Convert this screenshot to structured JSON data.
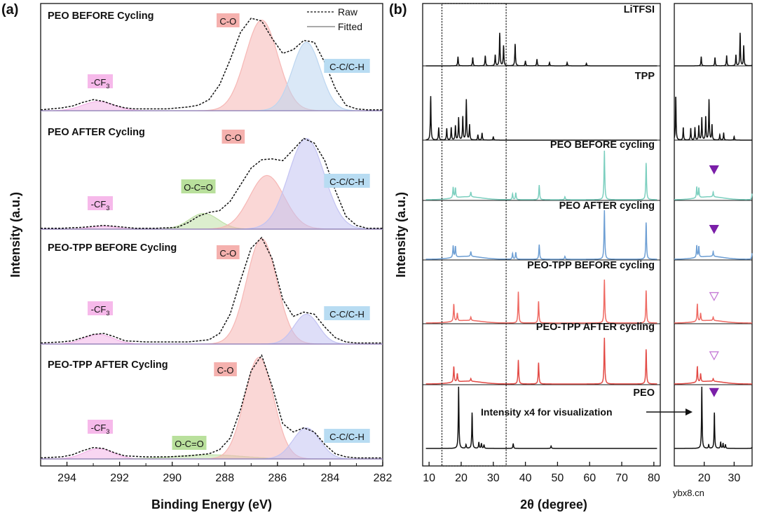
{
  "chart_data": [
    {
      "type": "line",
      "panel": "(a)",
      "xlabel": "Binding Energy (eV)",
      "ylabel": "Intensity (a.u.)",
      "xlim": [
        295,
        282
      ],
      "xticks": [
        294,
        292,
        290,
        288,
        286,
        284,
        282
      ],
      "legend": {
        "position": "top-right",
        "entries": [
          "Raw",
          "Fitted"
        ]
      },
      "subplots": [
        {
          "title": "PEO BEFORE Cycling",
          "scale": 1.0,
          "raw": {
            "x": [
              295,
              294.6,
              294.2,
              293.8,
              293.4,
              293,
              292.6,
              292.2,
              291.8,
              291.4,
              291,
              290.6,
              290.2,
              289.8,
              289.4,
              289,
              288.6,
              288.2,
              287.8,
              287.4,
              287,
              286.6,
              286.2,
              285.8,
              285.4,
              285,
              284.6,
              284.2,
              283.8,
              283.4,
              283,
              282.6,
              282.2,
              282
            ],
            "y": [
              0.01,
              0.02,
              0.03,
              0.05,
              0.09,
              0.12,
              0.1,
              0.06,
              0.03,
              0.02,
              0.02,
              0.02,
              0.02,
              0.03,
              0.04,
              0.06,
              0.12,
              0.28,
              0.55,
              0.85,
              1.0,
              0.97,
              0.78,
              0.62,
              0.66,
              0.76,
              0.74,
              0.52,
              0.24,
              0.06,
              0.02,
              0.01,
              0.01,
              0.01
            ]
          },
          "peaks": [
            {
              "label": "-CF3",
              "center": 292.8,
              "fwhm": 1.4,
              "height": 0.1,
              "color": "#f3b4e8"
            },
            {
              "label": "C-O",
              "center": 286.6,
              "fwhm": 1.45,
              "height": 0.98,
              "color": "#f6b7b5"
            },
            {
              "label": "C-C/C-H",
              "center": 284.9,
              "fwhm": 1.25,
              "height": 0.74,
              "color": "#bcd6f0"
            }
          ],
          "annotations": [
            "-CF3",
            "C-O",
            "C-C/C-H"
          ]
        },
        {
          "title": "PEO AFTER Cycling",
          "scale": 1.0,
          "raw": {
            "x": [
              295,
              294.2,
              293.4,
              293,
              292.6,
              292.2,
              291.4,
              290.6,
              289.8,
              289.4,
              289,
              288.6,
              288.2,
              287.8,
              287.4,
              287,
              286.6,
              286.2,
              285.8,
              285.4,
              285,
              284.6,
              284.2,
              283.8,
              283.4,
              283,
              282.6,
              282
            ],
            "y": [
              0.01,
              0.01,
              0.02,
              0.03,
              0.04,
              0.03,
              0.01,
              0.01,
              0.02,
              0.07,
              0.14,
              0.18,
              0.2,
              0.3,
              0.48,
              0.66,
              0.75,
              0.76,
              0.74,
              0.86,
              0.98,
              0.93,
              0.74,
              0.42,
              0.14,
              0.04,
              0.01,
              0.01
            ]
          },
          "peaks": [
            {
              "label": "-CF3",
              "center": 292.6,
              "fwhm": 1.2,
              "height": 0.03,
              "color": "#f3b4e8"
            },
            {
              "label": "O-C=O",
              "center": 288.8,
              "fwhm": 1.3,
              "height": 0.17,
              "color": "#bfe0a6"
            },
            {
              "label": "C-O",
              "center": 286.4,
              "fwhm": 1.55,
              "height": 0.58,
              "color": "#f6b7b5"
            },
            {
              "label": "C-C/C-H",
              "center": 284.9,
              "fwhm": 1.6,
              "height": 0.98,
              "color": "#c3c3f2"
            }
          ],
          "annotations": [
            "-CF3",
            "O-C=O",
            "C-O",
            "C-C/C-H"
          ]
        },
        {
          "title": "PEO-TPP BEFORE Cycling",
          "scale": 1.0,
          "raw": {
            "x": [
              295,
              294.2,
              293.8,
              293.4,
              293,
              292.6,
              292.2,
              291.8,
              291,
              290.2,
              289.4,
              288.6,
              288.2,
              287.8,
              287.4,
              287,
              286.6,
              286.2,
              285.8,
              285.4,
              285,
              284.6,
              284.2,
              283.8,
              283.4,
              283,
              282.6,
              282
            ],
            "y": [
              0.01,
              0.02,
              0.03,
              0.06,
              0.09,
              0.1,
              0.07,
              0.03,
              0.02,
              0.02,
              0.02,
              0.04,
              0.1,
              0.28,
              0.6,
              0.9,
              1.0,
              0.8,
              0.42,
              0.26,
              0.3,
              0.28,
              0.16,
              0.06,
              0.02,
              0.01,
              0.01,
              0.01
            ]
          },
          "peaks": [
            {
              "label": "-CF3",
              "center": 292.8,
              "fwhm": 1.3,
              "height": 0.09,
              "color": "#f3b4e8"
            },
            {
              "label": "C-O",
              "center": 286.6,
              "fwhm": 1.35,
              "height": 0.99,
              "color": "#f6b7b5"
            },
            {
              "label": "C-C/C-H",
              "center": 284.9,
              "fwhm": 1.1,
              "height": 0.28,
              "color": "#c3c3f2"
            }
          ],
          "annotations": [
            "-CF3",
            "C-O",
            "C-C/C-H"
          ]
        },
        {
          "title": "PEO-TPP AFTER Cycling",
          "scale": 1.0,
          "raw": {
            "x": [
              295,
              294.2,
              293.8,
              293.4,
              293,
              292.6,
              292.2,
              291.8,
              291,
              290.2,
              289.4,
              288.6,
              288.2,
              287.8,
              287.4,
              287,
              286.6,
              286.2,
              285.8,
              285.4,
              285,
              284.6,
              284.2,
              283.8,
              283.4,
              283,
              282.6,
              282
            ],
            "y": [
              0.01,
              0.02,
              0.04,
              0.08,
              0.11,
              0.1,
              0.06,
              0.03,
              0.02,
              0.02,
              0.03,
              0.05,
              0.09,
              0.2,
              0.48,
              0.85,
              1.0,
              0.7,
              0.34,
              0.26,
              0.3,
              0.26,
              0.14,
              0.05,
              0.02,
              0.01,
              0.01,
              0.01
            ]
          },
          "peaks": [
            {
              "label": "-CF3",
              "center": 292.8,
              "fwhm": 1.3,
              "height": 0.1,
              "color": "#f3b4e8"
            },
            {
              "label": "O-C=O",
              "center": 288.6,
              "fwhm": 3.0,
              "height": 0.04,
              "color": "#bfe0a6"
            },
            {
              "label": "C-O",
              "center": 286.7,
              "fwhm": 1.3,
              "height": 0.98,
              "color": "#f6b7b5"
            },
            {
              "label": "C-C/C-H",
              "center": 284.9,
              "fwhm": 1.2,
              "height": 0.3,
              "color": "#c3c3f2"
            }
          ],
          "annotations": [
            "-CF3",
            "O-C=O",
            "C-O",
            "C-C/C-H"
          ]
        }
      ]
    },
    {
      "type": "line",
      "panel": "(b)",
      "xlabel": "2θ (degree)",
      "ylabel": "Intensity (a.u.)",
      "xlim": [
        8,
        82
      ],
      "xticks": [
        10,
        20,
        30,
        40,
        50,
        60,
        70,
        80
      ],
      "inset": {
        "xlim": [
          10,
          36
        ],
        "xticks": [
          20,
          30
        ]
      },
      "highlight_range": [
        14,
        34
      ],
      "annotation": "Intensity x4 for visualization",
      "series": [
        {
          "name": "LiTFSI",
          "color": "#111111",
          "peaks": [
            [
              19,
              0.22
            ],
            [
              23.6,
              0.2
            ],
            [
              27.5,
              0.24
            ],
            [
              30.6,
              0.26
            ],
            [
              32,
              0.78
            ],
            [
              33.2,
              0.48
            ],
            [
              36.8,
              0.52
            ],
            [
              40,
              0.12
            ],
            [
              43.6,
              0.16
            ],
            [
              47.5,
              0.08
            ],
            [
              53,
              0.08
            ],
            [
              59,
              0.06
            ]
          ],
          "markers": []
        },
        {
          "name": "TPP",
          "color": "#111111",
          "peaks": [
            [
              10.5,
              0.98
            ],
            [
              13,
              0.28
            ],
            [
              15.5,
              0.26
            ],
            [
              16.9,
              0.28
            ],
            [
              18.2,
              0.32
            ],
            [
              19.2,
              0.5
            ],
            [
              20.5,
              0.52
            ],
            [
              21.6,
              0.9
            ],
            [
              22.6,
              0.34
            ],
            [
              25.2,
              0.12
            ],
            [
              26.5,
              0.16
            ],
            [
              30,
              0.08
            ]
          ],
          "markers": []
        },
        {
          "name": "PEO BEFORE cycling",
          "color": "#7ccfbf",
          "peaks": [
            [
              17.5,
              0.22
            ],
            [
              18.2,
              0.2
            ],
            [
              23,
              0.1
            ],
            [
              36,
              0.12
            ],
            [
              37,
              0.14
            ],
            [
              44.3,
              0.3
            ],
            [
              52.3,
              0.06
            ],
            [
              64.6,
              1.0
            ],
            [
              77.6,
              0.75
            ]
          ],
          "markers": [
            {
              "x": 23.3,
              "filled": true
            }
          ]
        },
        {
          "name": "PEO AFTER cycling",
          "color": "#6e9fd4",
          "peaks": [
            [
              17.5,
              0.24
            ],
            [
              18.2,
              0.22
            ],
            [
              23,
              0.1
            ],
            [
              36,
              0.12
            ],
            [
              37,
              0.14
            ],
            [
              44.3,
              0.3
            ],
            [
              52.3,
              0.06
            ],
            [
              64.6,
              1.0
            ],
            [
              77.6,
              0.75
            ]
          ],
          "markers": [
            {
              "x": 23.3,
              "filled": true
            }
          ]
        },
        {
          "name": "PEO-TPP BEFORE cycling",
          "color": "#ef6b64",
          "peaks": [
            [
              17.7,
              0.4
            ],
            [
              18.8,
              0.18
            ],
            [
              23,
              0.08
            ],
            [
              37.8,
              0.72
            ],
            [
              44.1,
              0.5
            ],
            [
              64.6,
              1.0
            ],
            [
              77.6,
              0.75
            ]
          ],
          "markers": [
            {
              "x": 23.3,
              "filled": false
            }
          ]
        },
        {
          "name": "PEO-TPP AFTER cycling",
          "color": "#e34b46",
          "peaks": [
            [
              17.7,
              0.34
            ],
            [
              18.8,
              0.18
            ],
            [
              23,
              0.06
            ],
            [
              37.8,
              0.52
            ],
            [
              44.1,
              0.46
            ],
            [
              64.6,
              1.0
            ],
            [
              77.6,
              0.75
            ]
          ],
          "markers": [
            {
              "x": 23.3,
              "filled": false
            }
          ]
        },
        {
          "name": "PEO",
          "color": "#111111",
          "peaks": [
            [
              19.2,
              1.0
            ],
            [
              21.5,
              0.06
            ],
            [
              23.4,
              0.58
            ],
            [
              25.5,
              0.1
            ],
            [
              26.3,
              0.08
            ],
            [
              27.1,
              0.06
            ],
            [
              36.2,
              0.08
            ],
            [
              48,
              0.04
            ]
          ],
          "markers": [
            {
              "x": 23.3,
              "filled": true
            }
          ]
        }
      ]
    }
  ],
  "credit": "ybx8.cn"
}
